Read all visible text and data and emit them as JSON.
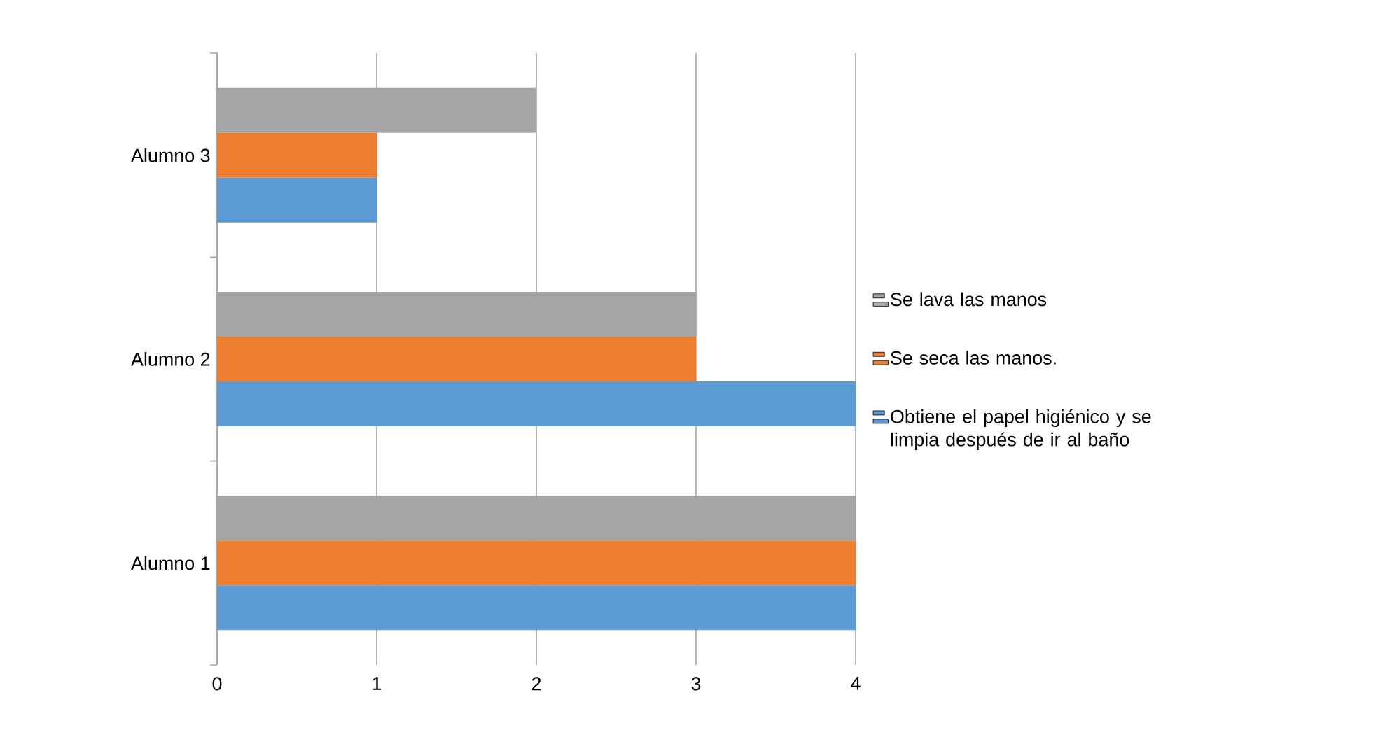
{
  "chart_data": {
    "type": "bar",
    "orientation": "horizontal",
    "categories": [
      "Alumno 3",
      "Alumno 2",
      "Alumno 1"
    ],
    "series": [
      {
        "name": "Obtiene el papel higiénico y se limpia después de ir al baño",
        "color": "#5b9bd5",
        "values": [
          1,
          4,
          4
        ]
      },
      {
        "name": "Se seca las manos.",
        "color": "#ed7d31",
        "values": [
          1,
          3,
          4
        ]
      },
      {
        "name": "Se lava las manos",
        "color": "#a5a5a5",
        "values": [
          2,
          3,
          4
        ]
      }
    ],
    "xlim": [
      0,
      4
    ],
    "xticks": [
      0,
      1,
      2,
      3,
      4
    ],
    "grid": "x",
    "legend": "right"
  }
}
